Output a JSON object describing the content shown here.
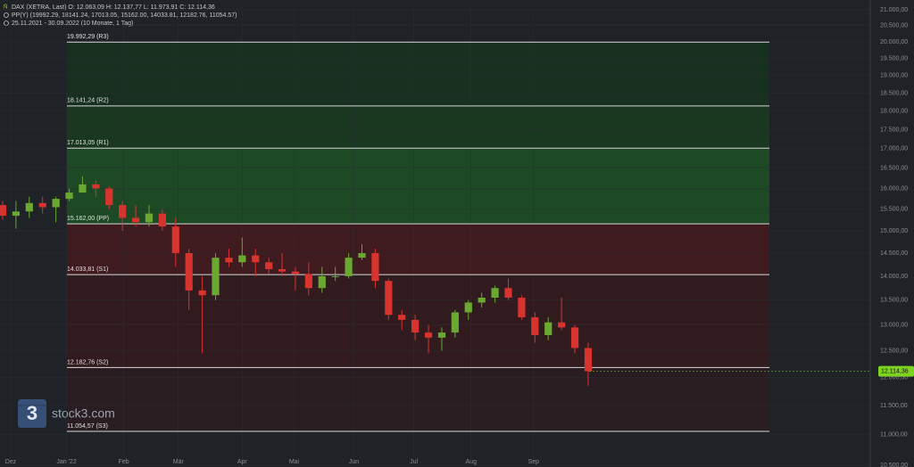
{
  "chart_data": {
    "type": "candlestick",
    "header": [
      "DAX (XETRA, Last)  O: 12.063,09  H: 12.137,77  L: 11.973,91  C: 12.114,36",
      "PP(Y)  (19992.29, 18141.24, 17013.05, 15162.00, 14033.81, 12182.76, 11054.57)",
      "25.11.2021 - 30.09.2022  (10 Monate, 1 Tag)"
    ],
    "logo": "stock3.com",
    "log_y": true,
    "grid": true,
    "up_color": "#6aa832",
    "down_color": "#d7332f",
    "ylim": [
      10500,
      21000
    ],
    "yticks": [
      {
        "value": 10500,
        "label": "10.500,00"
      },
      {
        "value": 11000,
        "label": "11.000,00"
      },
      {
        "value": 11500,
        "label": "11.500,00"
      },
      {
        "value": 12000,
        "label": "12.000,00"
      },
      {
        "value": 12500,
        "label": "12.500,00"
      },
      {
        "value": 13000,
        "label": "13.000,00"
      },
      {
        "value": 13500,
        "label": "13.500,00"
      },
      {
        "value": 14000,
        "label": "14.000,00"
      },
      {
        "value": 14500,
        "label": "14.500,00"
      },
      {
        "value": 15000,
        "label": "15.000,00"
      },
      {
        "value": 15500,
        "label": "15.500,00"
      },
      {
        "value": 16000,
        "label": "16.000,00"
      },
      {
        "value": 16500,
        "label": "16.500,00"
      },
      {
        "value": 17000,
        "label": "17.000,00"
      },
      {
        "value": 17500,
        "label": "17.500,00"
      },
      {
        "value": 18000,
        "label": "18.000,00"
      },
      {
        "value": 18500,
        "label": "18.500,00"
      },
      {
        "value": 19000,
        "label": "19.000,00"
      },
      {
        "value": 19500,
        "label": "19.500,00"
      },
      {
        "value": 20000,
        "label": "20.000,00"
      },
      {
        "value": 20500,
        "label": "20.500,00"
      },
      {
        "value": 21000,
        "label": "21.000,00"
      }
    ],
    "xlim": [
      -0.2,
      65.2
    ],
    "xticks": [
      {
        "value": 0.6,
        "label": "Dez"
      },
      {
        "value": 4.8,
        "label": "Jan '22"
      },
      {
        "value": 9.1,
        "label": "Feb"
      },
      {
        "value": 13.2,
        "label": "Mär"
      },
      {
        "value": 18,
        "label": "Apr"
      },
      {
        "value": 21.9,
        "label": "Mai"
      },
      {
        "value": 26.4,
        "label": "Jun"
      },
      {
        "value": 30.9,
        "label": "Jul"
      },
      {
        "value": 35.2,
        "label": "Aug"
      },
      {
        "value": 39.9,
        "label": "Sep"
      }
    ],
    "pivots": [
      {
        "value": 19992.29,
        "label": "19.992,29 (R3)"
      },
      {
        "value": 18141.24,
        "label": "18.141,24 (R2)"
      },
      {
        "value": 17013.05,
        "label": "17.013,05 (R1)"
      },
      {
        "value": 15162.0,
        "label": "15.162,00 (PP)"
      },
      {
        "value": 14033.81,
        "label": "14.033,81 (S1)"
      },
      {
        "value": 12182.76,
        "label": "12.182,76 (S2)"
      },
      {
        "value": 11054.57,
        "label": "11.054,57 (S3)"
      }
    ],
    "last_price": {
      "value": 12114.36,
      "label": "12.114,36"
    },
    "open": [
      15600,
      15350,
      15450,
      15650,
      15550,
      15750,
      15900,
      16100,
      16000,
      15600,
      15300,
      15200,
      15400,
      15100,
      14500,
      13700,
      13600,
      14400,
      14300,
      14450,
      14300,
      14150,
      14100,
      14050,
      13750,
      14000,
      14000,
      14400,
      14500,
      13900,
      13200,
      13100,
      12850,
      12750,
      12850,
      13250,
      13450,
      13550,
      13750,
      13550,
      13150,
      12800,
      13050,
      12950,
      12550
    ],
    "high": [
      15700,
      15700,
      15800,
      15800,
      15800,
      16000,
      16300,
      16200,
      16050,
      15700,
      15600,
      15600,
      15500,
      15300,
      14600,
      14000,
      14500,
      14600,
      14850,
      14600,
      14400,
      14500,
      14200,
      14300,
      14200,
      14200,
      14500,
      14700,
      14600,
      13950,
      13300,
      13200,
      13000,
      12950,
      13300,
      13500,
      13650,
      13800,
      13950,
      13600,
      13250,
      13150,
      13550,
      13000,
      12650
    ],
    "low": [
      15250,
      15050,
      15300,
      15400,
      15200,
      15700,
      15900,
      15800,
      15500,
      15000,
      15100,
      15100,
      15000,
      14200,
      13300,
      12450,
      13500,
      14200,
      14200,
      14000,
      14050,
      14000,
      13700,
      13600,
      13650,
      13900,
      13950,
      14350,
      13750,
      13100,
      12900,
      12700,
      12450,
      12500,
      12750,
      13100,
      13350,
      13450,
      13500,
      13100,
      12650,
      12700,
      12900,
      12450,
      11850
    ],
    "close": [
      15350,
      15450,
      15650,
      15550,
      15750,
      15900,
      16100,
      16000,
      15600,
      15300,
      15200,
      15400,
      15100,
      14500,
      13700,
      13600,
      14400,
      14300,
      14450,
      14300,
      14150,
      14100,
      14050,
      13750,
      14000,
      14000,
      14400,
      14500,
      13900,
      13200,
      13100,
      12850,
      12750,
      12850,
      13250,
      13450,
      13550,
      13750,
      13550,
      13150,
      12800,
      13050,
      12950,
      12550,
      12114.36
    ]
  }
}
